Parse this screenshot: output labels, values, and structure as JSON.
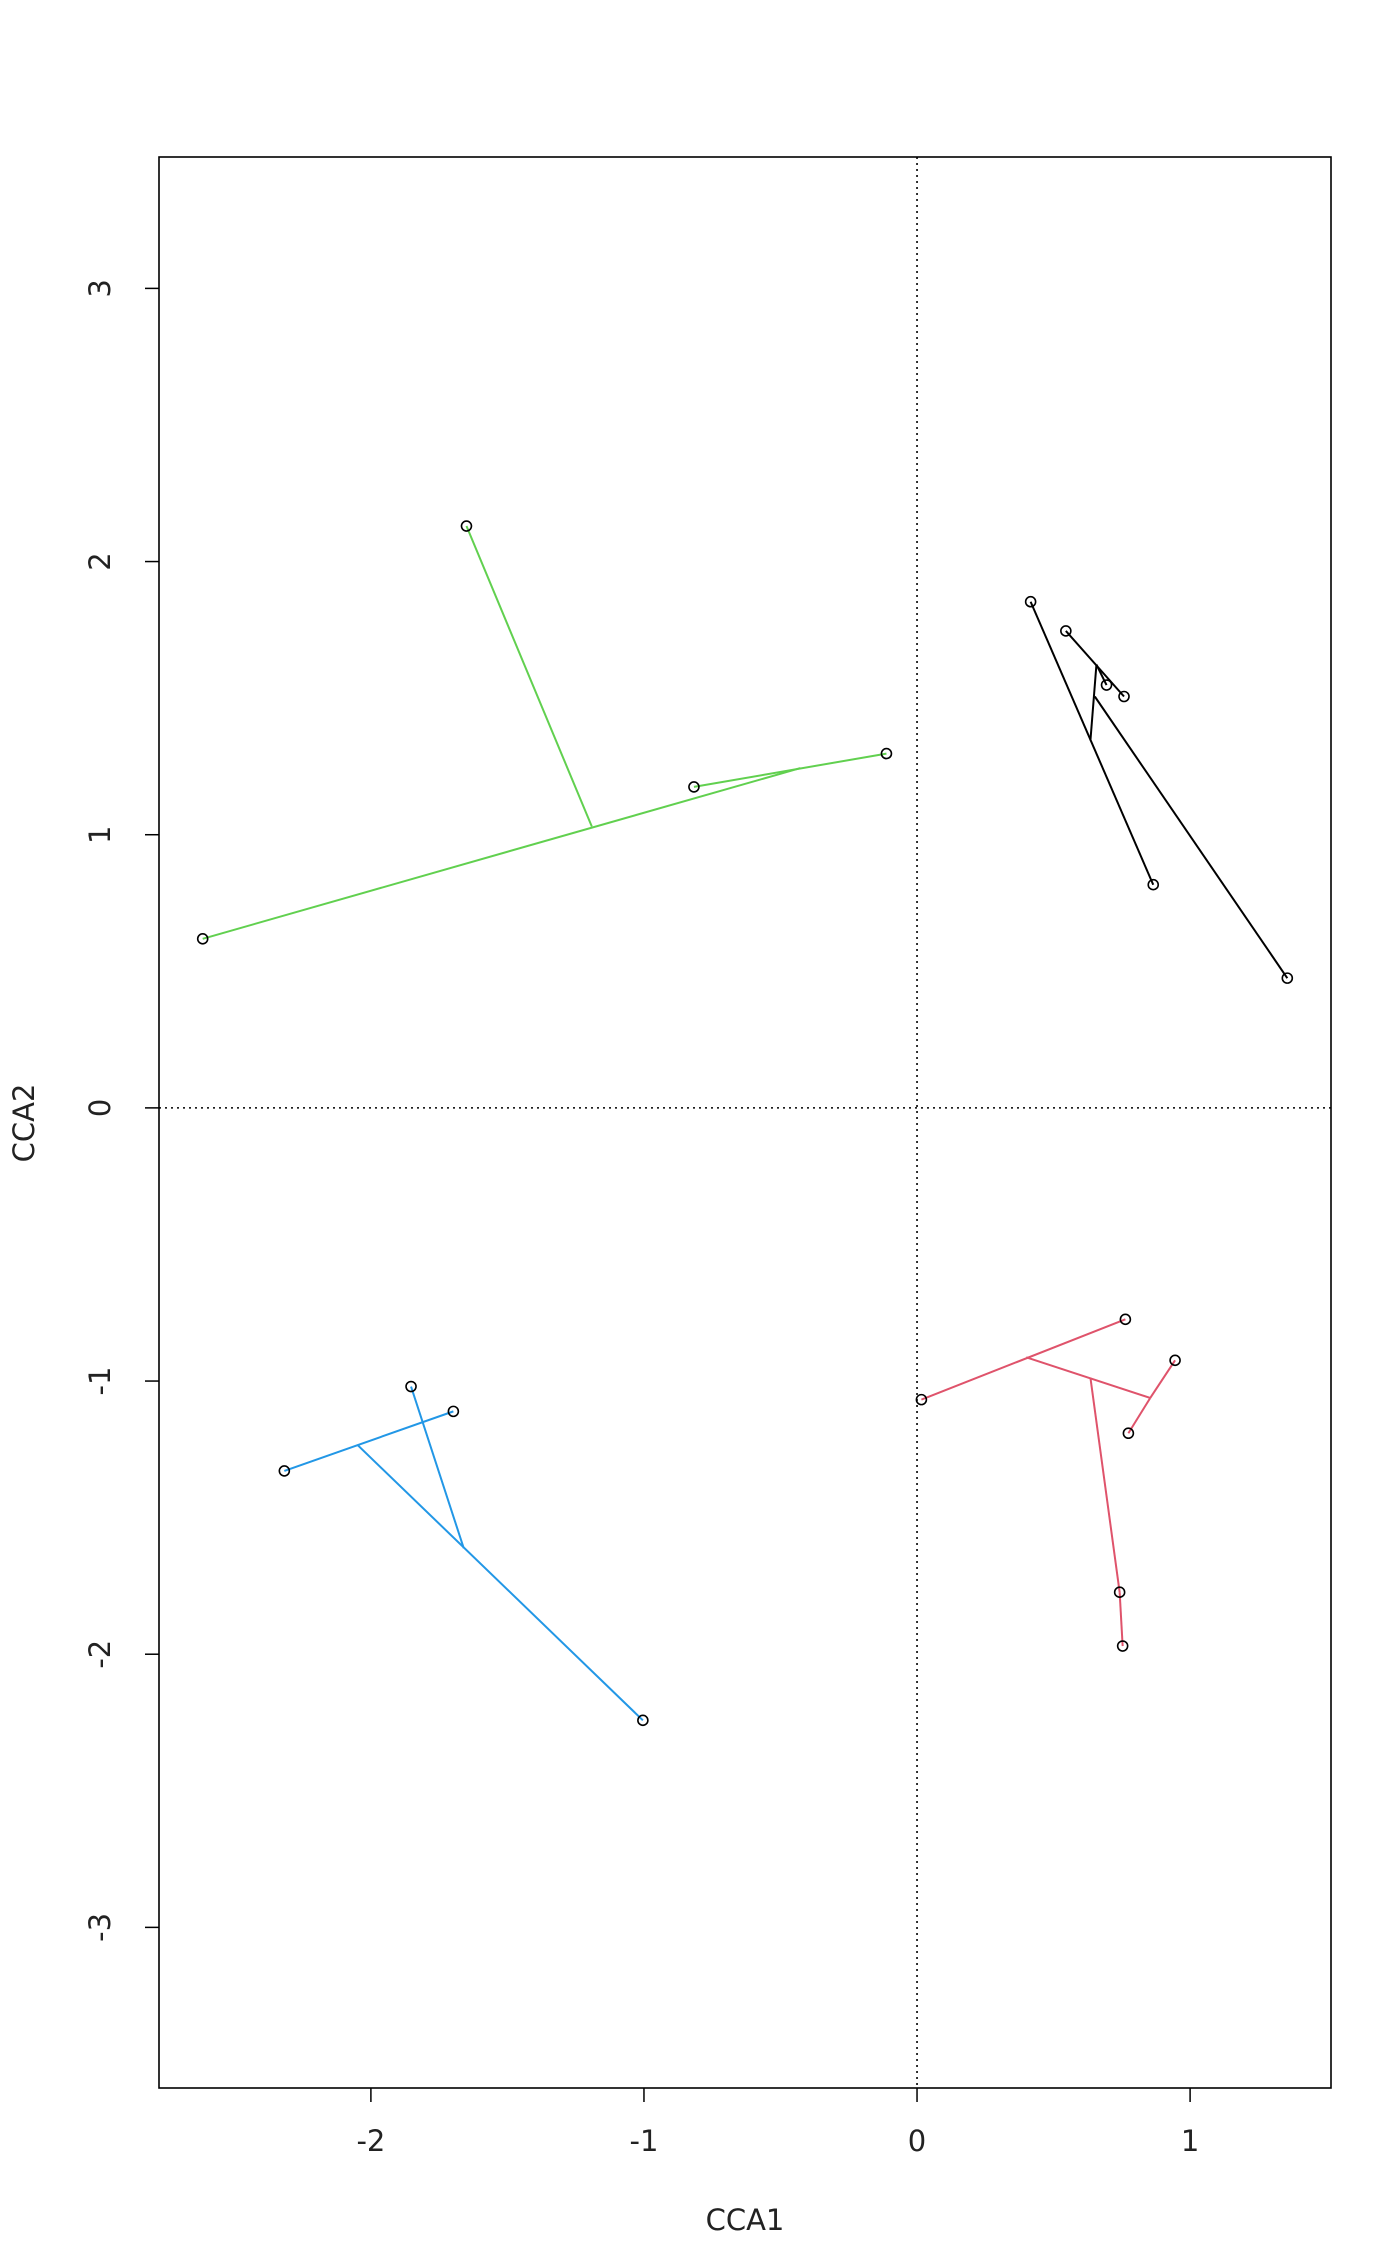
{
  "chart_data": {
    "type": "scatter",
    "x_label": "CCA1",
    "y_label": "CCA2",
    "xlim": [
      -2.776,
      1.516
    ],
    "ylim": [
      -3.588,
      3.481
    ],
    "xticks": [
      -2,
      -1,
      0,
      1
    ],
    "yticks": [
      -3,
      -2,
      -1,
      0,
      1,
      2,
      3
    ],
    "reference_lines": {
      "x": 0,
      "y": 0
    },
    "series": [
      {
        "color": "#61D04F",
        "x": [
          -1.65,
          -0.817,
          -0.112,
          -2.616
        ],
        "y": [
          2.13,
          1.175,
          1.297,
          0.619
        ],
        "segments": [
          {
            "x": [
              -2.616,
              -0.427
            ],
            "y": [
              0.619,
              1.244
            ]
          },
          {
            "x": [
              -0.817,
              -0.112
            ],
            "y": [
              1.175,
              1.297
            ]
          },
          {
            "x": [
              -1.65,
              -1.191
            ],
            "y": [
              2.13,
              1.03
            ]
          }
        ]
      },
      {
        "color": "#000000",
        "x": [
          0.416,
          0.545,
          0.694,
          0.758,
          0.865,
          1.356
        ],
        "y": [
          1.853,
          1.746,
          1.548,
          1.506,
          0.817,
          0.475
        ],
        "segments": [
          {
            "x": [
              0.416,
              0.865
            ],
            "y": [
              1.853,
              0.817
            ]
          },
          {
            "x": [
              0.545,
              0.758
            ],
            "y": [
              1.746,
              1.506
            ]
          },
          {
            "x": [
              0.657,
              0.635
            ],
            "y": [
              1.623,
              1.345
            ]
          },
          {
            "x": [
              0.651,
              1.356
            ],
            "y": [
              1.506,
              0.475
            ]
          },
          {
            "x": [
              0.694,
              0.657
            ],
            "y": [
              1.548,
              1.623
            ]
          }
        ]
      },
      {
        "color": "#DF536B",
        "x": [
          0.763,
          0.945,
          0.774,
          0.016,
          0.742,
          0.753
        ],
        "y": [
          -0.774,
          -0.924,
          -1.191,
          -1.068,
          -1.773,
          -1.97
        ],
        "segments": [
          {
            "x": [
              0.016,
              0.763
            ],
            "y": [
              -1.068,
              -0.774
            ]
          },
          {
            "x": [
              0.4,
              0.854
            ],
            "y": [
              -0.913,
              -1.062
            ]
          },
          {
            "x": [
              0.854,
              0.945
            ],
            "y": [
              -1.062,
              -0.924
            ]
          },
          {
            "x": [
              0.854,
              0.774
            ],
            "y": [
              -1.062,
              -1.191
            ]
          },
          {
            "x": [
              0.635,
              0.742
            ],
            "y": [
              -0.988,
              -1.773
            ]
          },
          {
            "x": [
              0.742,
              0.753
            ],
            "y": [
              -1.773,
              -1.97
            ]
          }
        ]
      },
      {
        "color": "#2297E6",
        "x": [
          -1.853,
          -1.698,
          -2.317,
          -1.004
        ],
        "y": [
          -1.02,
          -1.111,
          -1.329,
          -2.242
        ],
        "segments": [
          {
            "x": [
              -2.317,
              -1.698
            ],
            "y": [
              -1.329,
              -1.111
            ]
          },
          {
            "x": [
              -1.853,
              -1.66
            ],
            "y": [
              -1.02,
              -1.612
            ]
          },
          {
            "x": [
              -2.05,
              -1.004
            ],
            "y": [
              -1.233,
              -2.242
            ]
          }
        ]
      }
    ]
  }
}
